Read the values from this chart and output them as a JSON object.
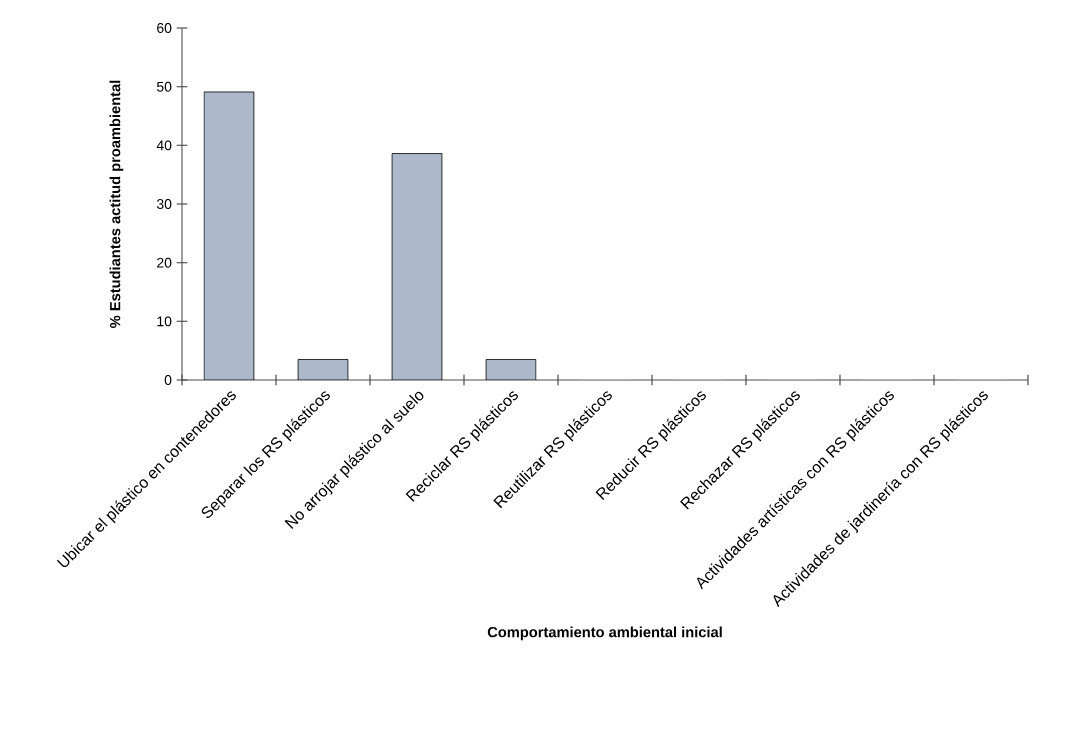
{
  "chart_data": {
    "type": "bar",
    "xlabel": "Comportamiento ambiental inicial",
    "ylabel": "% Estudiantes actitud proambiental",
    "categories": [
      "Ubicar el plástico en contenedores",
      "Separar los RS plásticos",
      "No arrojar plástico al suelo",
      "Reciclar RS plásticos",
      "Reutilizar RS plásticos",
      "Reducir RS plásticos",
      "Rechazar RS plásticos",
      "Actividades artísticas con RS plásticos",
      "Actividades de jardinería con RS plásticos"
    ],
    "values": [
      49.1,
      3.5,
      38.6,
      3.5,
      0,
      0,
      0,
      0,
      0
    ],
    "color": "#adb8cb",
    "ylim": [
      0,
      60
    ],
    "yticks": [
      0,
      10,
      20,
      30,
      40,
      50,
      60
    ],
    "grid": false
  }
}
